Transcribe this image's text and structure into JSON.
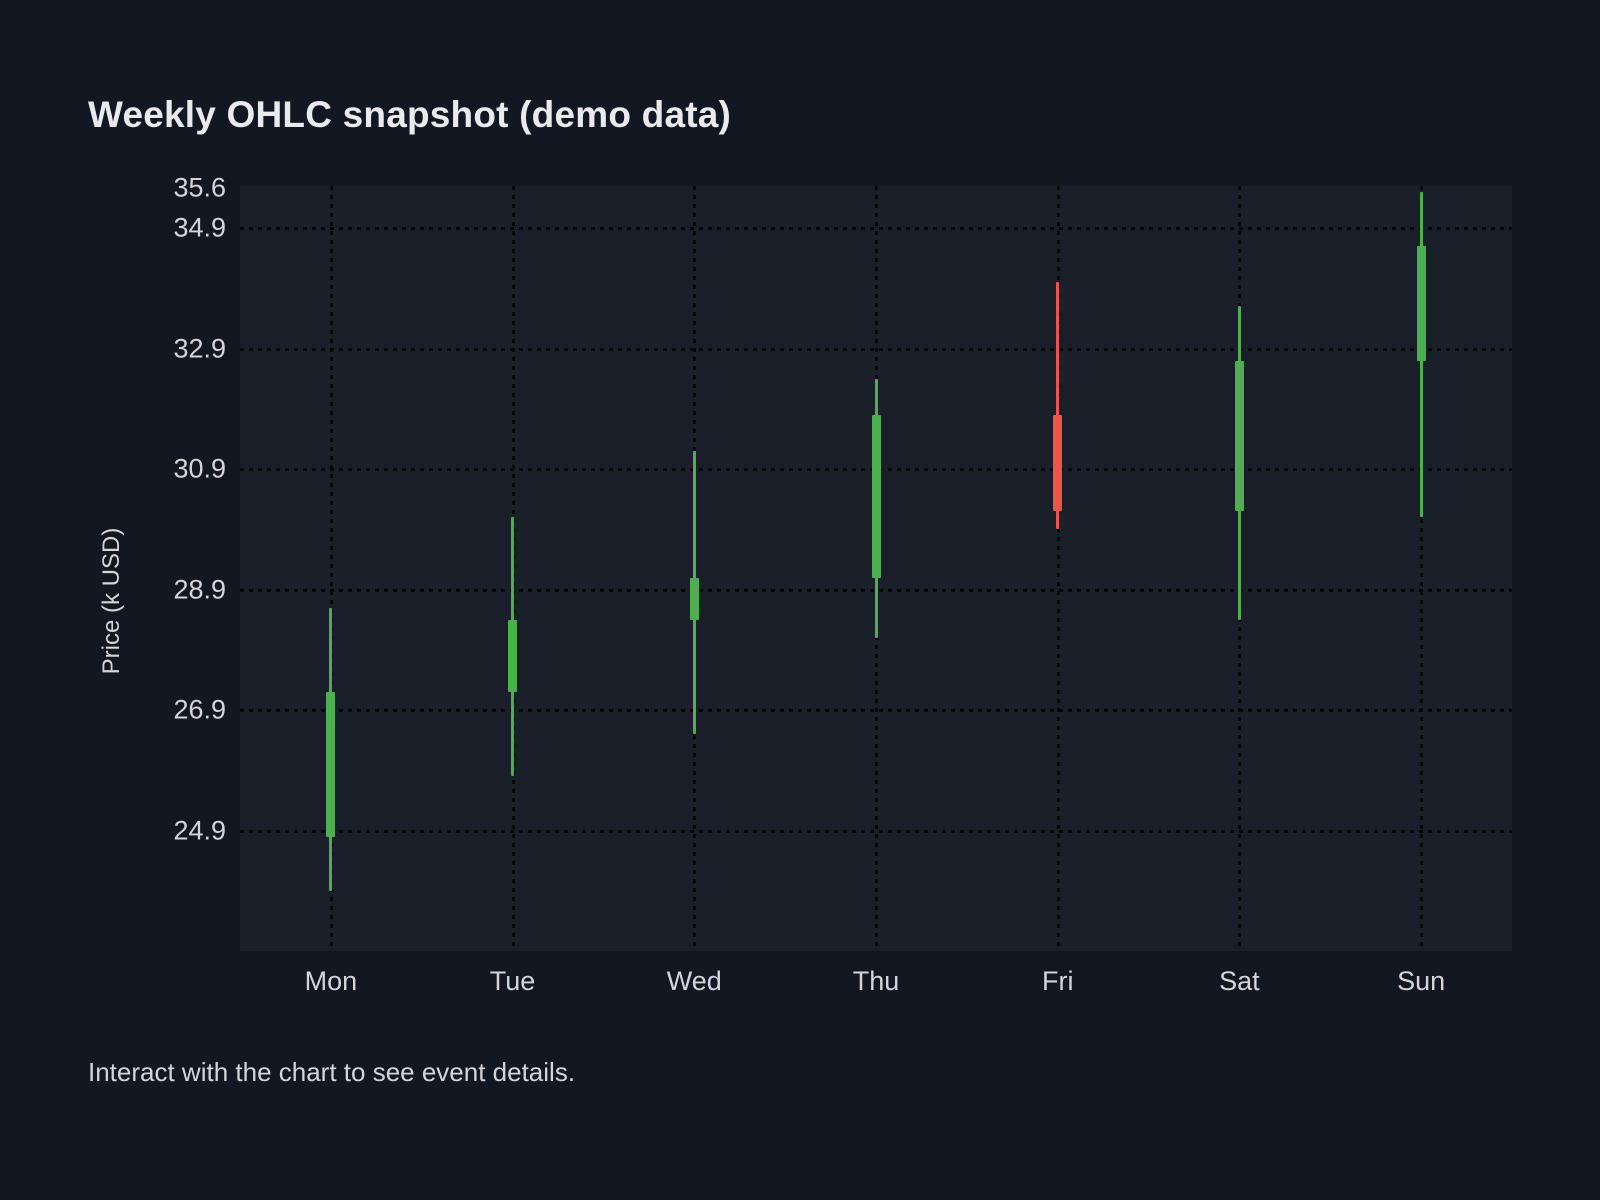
{
  "page": {
    "title": "Weekly OHLC snapshot (demo data)",
    "footer_hint": "Interact with the chart to see event details."
  },
  "chart_data": {
    "type": "candlestick",
    "title": "Weekly OHLC snapshot (demo data)",
    "xlabel": "",
    "ylabel": "Price (k USD)",
    "x_categories": [
      "Mon",
      "Tue",
      "Wed",
      "Thu",
      "Fri",
      "Sat",
      "Sun"
    ],
    "candles": [
      {
        "day": "Mon",
        "open": 24.8,
        "high": 28.6,
        "low": 23.9,
        "close": 27.2,
        "direction": "up"
      },
      {
        "day": "Tue",
        "open": 27.2,
        "high": 30.1,
        "low": 25.8,
        "close": 28.4,
        "direction": "up"
      },
      {
        "day": "Wed",
        "open": 28.4,
        "high": 31.2,
        "low": 26.5,
        "close": 29.1,
        "direction": "up"
      },
      {
        "day": "Thu",
        "open": 29.1,
        "high": 32.4,
        "low": 28.1,
        "close": 31.8,
        "direction": "up"
      },
      {
        "day": "Fri",
        "open": 31.8,
        "high": 34.0,
        "low": 29.9,
        "close": 30.2,
        "direction": "down"
      },
      {
        "day": "Sat",
        "open": 30.2,
        "high": 33.6,
        "low": 28.4,
        "close": 32.7,
        "direction": "up"
      },
      {
        "day": "Sun",
        "open": 32.7,
        "high": 35.5,
        "low": 30.1,
        "close": 34.6,
        "direction": "up"
      }
    ],
    "ylim": [
      22.9,
      35.6
    ],
    "yticks": [
      {
        "label": "35.6",
        "value": 35.6,
        "gridline": false
      },
      {
        "label": "34.9",
        "value": 34.9,
        "gridline": true
      },
      {
        "label": "32.9",
        "value": 32.9,
        "gridline": true
      },
      {
        "label": "30.9",
        "value": 30.9,
        "gridline": true
      },
      {
        "label": "28.9",
        "value": 28.9,
        "gridline": true
      },
      {
        "label": "26.9",
        "value": 26.9,
        "gridline": true
      },
      {
        "label": "24.9",
        "value": 24.9,
        "gridline": true
      }
    ],
    "grid": "dotted",
    "legend": "none",
    "colors": {
      "up": "#4caf50",
      "down": "#ef5350",
      "page_background": "#131722",
      "plot_background": "#1a1f2a",
      "gridline": "#05070b",
      "text": "#d3d5db",
      "title_text": "#e8eaee"
    }
  }
}
